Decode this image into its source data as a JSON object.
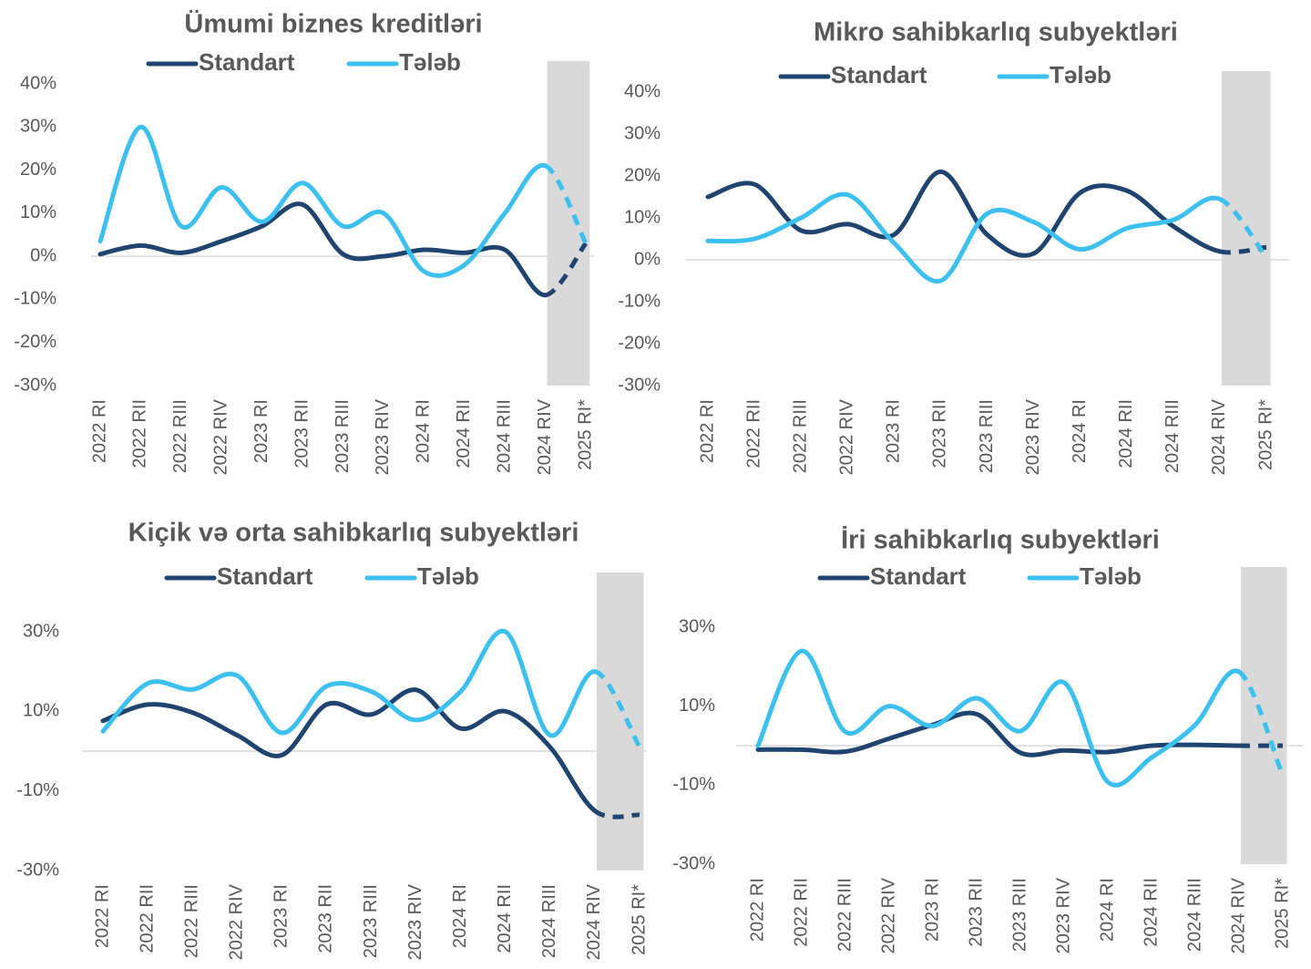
{
  "chart_data": [
    {
      "type": "line",
      "title": "Ümumi biznes kreditləri",
      "categories": [
        "2022 RI",
        "2022 RII",
        "2022 RIII",
        "2022 RIV",
        "2023 RI",
        "2023 RII",
        "2023 RIII",
        "2023 RIV",
        "2024 RI",
        "2024 RII",
        "2024 RIII",
        "2024  RIV",
        "2025 RI*"
      ],
      "series": [
        {
          "name": "Standart",
          "color": "#1f4470",
          "values": [
            0.5,
            2.5,
            0.8,
            3.5,
            7,
            12,
            0.5,
            0,
            1.5,
            0.8,
            1.5,
            -9,
            3
          ]
        },
        {
          "name": "Tələb",
          "color": "#3cc0f0",
          "values": [
            3.5,
            30,
            7,
            16,
            8,
            17,
            7,
            10,
            -3.5,
            -2,
            10,
            21,
            3
          ]
        }
      ],
      "ylim": [
        -30,
        40
      ],
      "yticks": [
        {
          "value": -30,
          "label": "-30%"
        },
        {
          "value": -20,
          "label": "-20%"
        },
        {
          "value": -10,
          "label": "-10%"
        },
        {
          "value": 0,
          "label": "0%"
        },
        {
          "value": 10,
          "label": "10%"
        },
        {
          "value": 20,
          "label": "20%"
        },
        {
          "value": 30,
          "label": "30%"
        },
        {
          "value": 40,
          "label": "40%"
        }
      ]
    },
    {
      "type": "line",
      "title": "Mikro sahibkarlıq subyektləri",
      "categories": [
        "2022 RI",
        "2022 RII",
        "2022 RIII",
        "2022 RIV",
        "2023 RI",
        "2023 RII",
        "2023 RIII",
        "2023 RIV",
        "2024 RI",
        "2024 RII",
        "2024 RIII",
        "2024  RIV",
        "2025 RI*"
      ],
      "series": [
        {
          "name": "Standart",
          "color": "#1f4470",
          "values": [
            15,
            18,
            7,
            8.5,
            6,
            21,
            6,
            1.5,
            16,
            16.5,
            8,
            2,
            3
          ]
        },
        {
          "name": "Tələb",
          "color": "#3cc0f0",
          "values": [
            4.5,
            5,
            10,
            15.5,
            4,
            -5,
            11,
            9,
            2.5,
            7.5,
            9.5,
            14.5,
            0.5
          ]
        }
      ],
      "ylim": [
        -30,
        40
      ],
      "yticks": [
        {
          "value": -30,
          "label": "-30%"
        },
        {
          "value": -20,
          "label": "-20%"
        },
        {
          "value": -10,
          "label": "-10%"
        },
        {
          "value": 0,
          "label": "0%"
        },
        {
          "value": 10,
          "label": "10%"
        },
        {
          "value": 20,
          "label": "20%"
        },
        {
          "value": 30,
          "label": "30%"
        },
        {
          "value": 40,
          "label": "40%"
        }
      ]
    },
    {
      "type": "line",
      "title": "Kiçik və orta sahibkarlıq subyektləri",
      "categories": [
        "2022 RI",
        "2022 RII",
        "2022 RIII",
        "2022 RIV",
        "2023 RI",
        "2023 RII",
        "2023 RIII",
        "2023 RIV",
        "2024 RI",
        "2024 RII",
        "2024 RIII",
        "2024 RIV",
        "2025 RI*"
      ],
      "series": [
        {
          "name": "Standart",
          "color": "#1f4470",
          "values": [
            7.6,
            11.7,
            9.7,
            4,
            -1,
            11.7,
            9.2,
            15.4,
            5.7,
            10,
            1,
            -15,
            -16
          ]
        },
        {
          "name": "Tələb",
          "color": "#3cc0f0",
          "values": [
            5,
            17,
            15.5,
            19,
            4.6,
            16.3,
            15,
            7.8,
            15,
            30,
            4,
            20,
            1
          ]
        }
      ],
      "ylim": [
        -30,
        40
      ],
      "yticks": [
        {
          "value": -30,
          "label": "-30%"
        },
        {
          "value": -10,
          "label": "-10%"
        },
        {
          "value": 10,
          "label": "10%"
        },
        {
          "value": 30,
          "label": "30%"
        }
      ]
    },
    {
      "type": "line",
      "title": "İri sahibkarlıq subyektləri",
      "categories": [
        "2022 RI",
        "2022 RII",
        "2022 RIII",
        "2022 RIV",
        "2023 RI",
        "2023 RII",
        "2023 RIII",
        "2023 RIV",
        "2024 RI",
        "2024 RII",
        "2024 RIII",
        "2024  RIV",
        "2025 RI*"
      ],
      "series": [
        {
          "name": "Standart",
          "color": "#1f4470",
          "values": [
            -1,
            -1,
            -1.5,
            1.8,
            5.3,
            8,
            -1.8,
            -1.2,
            -1.6,
            0,
            0.2,
            0,
            0
          ]
        },
        {
          "name": "Tələb",
          "color": "#3cc0f0",
          "values": [
            0,
            24,
            3.5,
            10,
            5,
            12,
            3.7,
            16,
            -9.2,
            -3,
            5.3,
            18.7,
            -7.6
          ]
        }
      ],
      "ylim": [
        -30,
        40
      ],
      "yticks": [
        {
          "value": -30,
          "label": "-30%"
        },
        {
          "value": -10,
          "label": "-10%"
        },
        {
          "value": 10,
          "label": "10%"
        },
        {
          "value": 30,
          "label": "30%"
        }
      ]
    }
  ]
}
